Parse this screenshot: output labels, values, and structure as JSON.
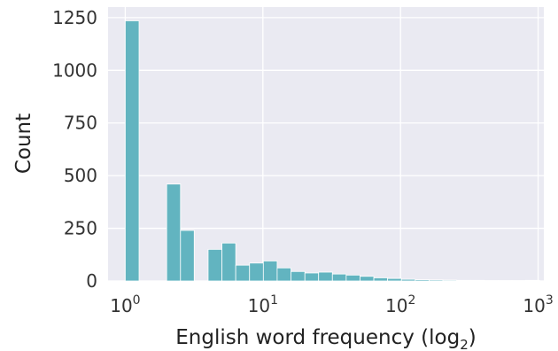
{
  "chart_data": {
    "type": "bar",
    "xlabel": "English word frequency (log",
    "xlabel_sub": "2",
    "xlabel_end": ")",
    "ylabel": "Count",
    "x_scale": "log",
    "xlim": [
      0.75,
      1100
    ],
    "ylim": [
      0,
      1300
    ],
    "grid": true,
    "x_ticks": [
      {
        "value": 1,
        "base": "10",
        "exp": "0"
      },
      {
        "value": 10,
        "base": "10",
        "exp": "1"
      },
      {
        "value": 100,
        "base": "10",
        "exp": "2"
      },
      {
        "value": 1000,
        "base": "10",
        "exp": "3"
      }
    ],
    "y_ticks": [
      {
        "value": 0,
        "label": "0"
      },
      {
        "value": 250,
        "label": "250"
      },
      {
        "value": 500,
        "label": "500"
      },
      {
        "value": 750,
        "label": "750"
      },
      {
        "value": 1000,
        "label": "1000"
      },
      {
        "value": 1250,
        "label": "1250"
      }
    ],
    "bin_edges": [
      1,
      1.26,
      1.59,
      2.0,
      2.52,
      3.17,
      4.0,
      5.04,
      6.35,
      8.0,
      10.08,
      12.7,
      16.0,
      20.2,
      25.4,
      32.0,
      40.3,
      50.8,
      64.0,
      80.6,
      101.6,
      128.0,
      161.3,
      203.2,
      256.0,
      322.5,
      406.4,
      512.0,
      645.1,
      812.7,
      1024.0
    ],
    "bin_counts": [
      1235,
      0,
      0,
      460,
      240,
      0,
      150,
      180,
      75,
      85,
      95,
      62,
      45,
      38,
      42,
      33,
      28,
      22,
      15,
      12,
      8,
      6,
      5,
      4,
      3,
      3,
      2,
      2,
      2,
      3
    ],
    "bar_color": "#62b4c0"
  }
}
